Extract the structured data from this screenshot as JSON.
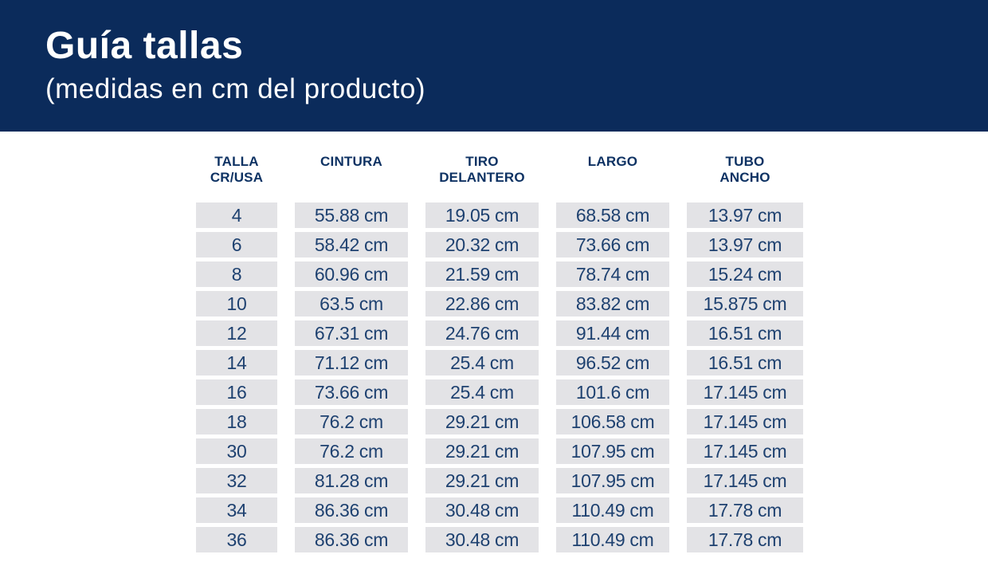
{
  "header": {
    "title": "Guía tallas",
    "subtitle": "(medidas en cm del producto)"
  },
  "colors": {
    "banner_bg": "#0b2b5b",
    "banner_text": "#ffffff",
    "column_header_text": "#0e3263",
    "cell_text": "#1e4170",
    "cell_bg": "#e3e3e6",
    "page_bg": "#ffffff"
  },
  "table": {
    "col_headers": [
      [
        "TALLA",
        "CR/USA"
      ],
      [
        "CINTURA"
      ],
      [
        "TIRO",
        "DELANTERO"
      ],
      [
        "LARGO"
      ],
      [
        "TUBO",
        "ANCHO"
      ]
    ]
  },
  "chart_data": {
    "type": "table",
    "title": "Guía tallas",
    "subtitle": "(medidas en cm del producto)",
    "columns": [
      "TALLA CR/USA",
      "CINTURA",
      "TIRO DELANTERO",
      "LARGO",
      "TUBO ANCHO"
    ],
    "rows": [
      [
        "4",
        "55.88 cm",
        "19.05 cm",
        "68.58 cm",
        "13.97 cm"
      ],
      [
        "6",
        "58.42 cm",
        "20.32 cm",
        "73.66 cm",
        "13.97 cm"
      ],
      [
        "8",
        "60.96 cm",
        "21.59 cm",
        "78.74 cm",
        "15.24 cm"
      ],
      [
        "10",
        "63.5 cm",
        "22.86 cm",
        "83.82 cm",
        "15.875 cm"
      ],
      [
        "12",
        "67.31 cm",
        "24.76 cm",
        "91.44 cm",
        "16.51 cm"
      ],
      [
        "14",
        "71.12 cm",
        "25.4 cm",
        "96.52 cm",
        "16.51 cm"
      ],
      [
        "16",
        "73.66 cm",
        "25.4 cm",
        "101.6 cm",
        "17.145 cm"
      ],
      [
        "18",
        "76.2 cm",
        "29.21 cm",
        "106.58 cm",
        "17.145 cm"
      ],
      [
        "30",
        "76.2 cm",
        "29.21 cm",
        "107.95 cm",
        "17.145 cm"
      ],
      [
        "32",
        "81.28 cm",
        "29.21 cm",
        "107.95 cm",
        "17.145 cm"
      ],
      [
        "34",
        "86.36 cm",
        "30.48 cm",
        "110.49 cm",
        "17.78 cm"
      ],
      [
        "36",
        "86.36 cm",
        "30.48 cm",
        "110.49 cm",
        "17.78 cm"
      ]
    ]
  }
}
